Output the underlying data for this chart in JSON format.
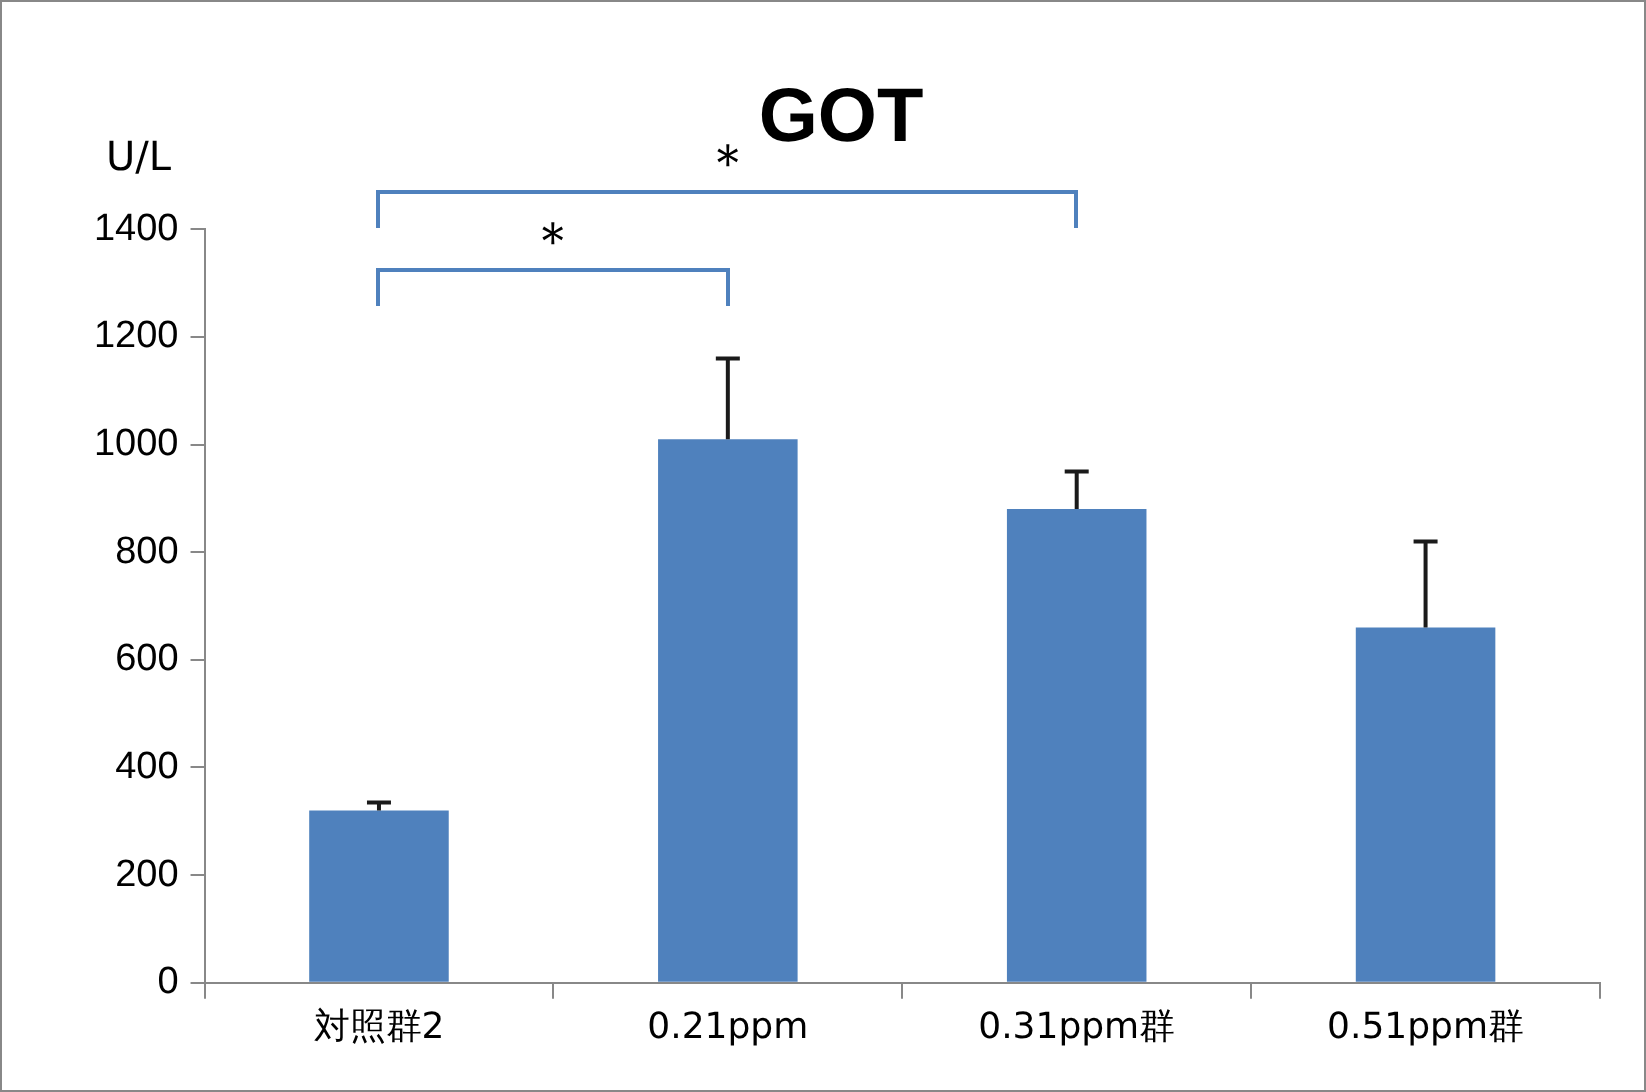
{
  "chart_data": {
    "type": "bar",
    "title": "GOT",
    "ylabel": "U/L",
    "categories": [
      "対照群2",
      "0.21ppm",
      "0.31ppm群",
      "0.51ppm群"
    ],
    "values": [
      320,
      1010,
      880,
      660
    ],
    "errors": [
      [
        320,
        335
      ],
      [
        1010,
        1160
      ],
      [
        880,
        950
      ],
      [
        660,
        820
      ]
    ],
    "color": "#4f81bd",
    "ylim": [
      0,
      1400
    ],
    "yticks": [
      0,
      200,
      400,
      600,
      800,
      1000,
      1200,
      1400
    ],
    "grid": false,
    "legend": false,
    "annotations": [
      "＊",
      "＊"
    ]
  }
}
